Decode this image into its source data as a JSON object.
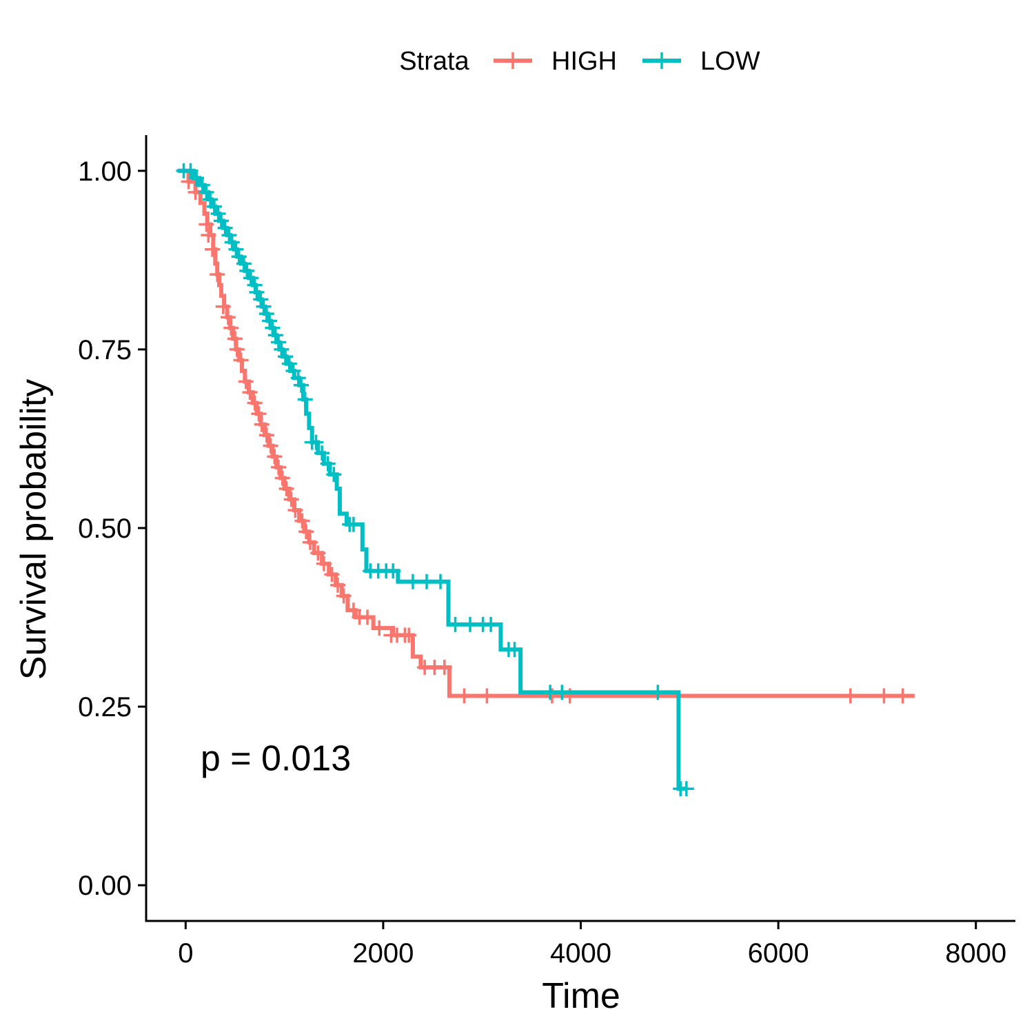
{
  "chart_data": {
    "type": "line",
    "subtype": "kaplan-meier step",
    "xlabel": "Time",
    "ylabel": "Survival probability",
    "xlim": [
      -400,
      8400
    ],
    "ylim": [
      -0.05,
      1.05
    ],
    "xticks": [
      0,
      2000,
      4000,
      6000,
      8000
    ],
    "xtick_labels": [
      "0",
      "2000",
      "4000",
      "6000",
      "8000"
    ],
    "yticks": [
      0,
      0.25,
      0.5,
      0.75,
      1.0
    ],
    "ytick_labels": [
      "0.00",
      "0.25",
      "0.50",
      "0.75",
      "1.00"
    ],
    "legend": {
      "title": "Strata",
      "position": "top"
    },
    "annotation": {
      "text": "p = 0.013",
      "x": 150,
      "y": 0.18
    },
    "grid": false,
    "series": [
      {
        "name": "HIGH",
        "color": "#F8766D",
        "steps": [
          [
            -80,
            1.0
          ],
          [
            30,
            0.985
          ],
          [
            100,
            0.97
          ],
          [
            150,
            0.955
          ],
          [
            190,
            0.94
          ],
          [
            220,
            0.925
          ],
          [
            250,
            0.91
          ],
          [
            280,
            0.89
          ],
          [
            300,
            0.87
          ],
          [
            320,
            0.855
          ],
          [
            340,
            0.84
          ],
          [
            360,
            0.825
          ],
          [
            390,
            0.81
          ],
          [
            420,
            0.795
          ],
          [
            450,
            0.78
          ],
          [
            480,
            0.765
          ],
          [
            510,
            0.75
          ],
          [
            540,
            0.735
          ],
          [
            570,
            0.72
          ],
          [
            600,
            0.705
          ],
          [
            640,
            0.69
          ],
          [
            680,
            0.675
          ],
          [
            720,
            0.66
          ],
          [
            760,
            0.645
          ],
          [
            800,
            0.63
          ],
          [
            840,
            0.615
          ],
          [
            880,
            0.6
          ],
          [
            920,
            0.585
          ],
          [
            960,
            0.57
          ],
          [
            1000,
            0.555
          ],
          [
            1050,
            0.54
          ],
          [
            1100,
            0.525
          ],
          [
            1150,
            0.51
          ],
          [
            1200,
            0.495
          ],
          [
            1250,
            0.48
          ],
          [
            1300,
            0.465
          ],
          [
            1380,
            0.45
          ],
          [
            1450,
            0.435
          ],
          [
            1520,
            0.42
          ],
          [
            1580,
            0.405
          ],
          [
            1640,
            0.385
          ],
          [
            1720,
            0.375
          ],
          [
            1900,
            0.36
          ],
          [
            2100,
            0.35
          ],
          [
            2300,
            0.32
          ],
          [
            2380,
            0.305
          ],
          [
            2670,
            0.265
          ],
          [
            7380,
            0.265
          ]
        ],
        "censor": [
          [
            30,
            0.985
          ],
          [
            100,
            0.97
          ],
          [
            210,
            0.925
          ],
          [
            230,
            0.91
          ],
          [
            270,
            0.89
          ],
          [
            320,
            0.855
          ],
          [
            380,
            0.81
          ],
          [
            430,
            0.795
          ],
          [
            460,
            0.78
          ],
          [
            500,
            0.765
          ],
          [
            520,
            0.75
          ],
          [
            560,
            0.735
          ],
          [
            610,
            0.705
          ],
          [
            650,
            0.69
          ],
          [
            700,
            0.675
          ],
          [
            740,
            0.66
          ],
          [
            770,
            0.645
          ],
          [
            820,
            0.63
          ],
          [
            860,
            0.615
          ],
          [
            900,
            0.6
          ],
          [
            940,
            0.585
          ],
          [
            980,
            0.57
          ],
          [
            1020,
            0.555
          ],
          [
            1070,
            0.54
          ],
          [
            1110,
            0.525
          ],
          [
            1180,
            0.51
          ],
          [
            1220,
            0.495
          ],
          [
            1260,
            0.48
          ],
          [
            1340,
            0.465
          ],
          [
            1400,
            0.45
          ],
          [
            1480,
            0.435
          ],
          [
            1540,
            0.42
          ],
          [
            1600,
            0.405
          ],
          [
            1700,
            0.385
          ],
          [
            1760,
            0.375
          ],
          [
            1840,
            0.375
          ],
          [
            1960,
            0.36
          ],
          [
            2080,
            0.35
          ],
          [
            2140,
            0.35
          ],
          [
            2220,
            0.35
          ],
          [
            2260,
            0.35
          ],
          [
            2420,
            0.305
          ],
          [
            2520,
            0.305
          ],
          [
            2620,
            0.305
          ],
          [
            2820,
            0.265
          ],
          [
            3050,
            0.265
          ],
          [
            3710,
            0.265
          ],
          [
            3890,
            0.265
          ],
          [
            6730,
            0.265
          ],
          [
            7070,
            0.265
          ],
          [
            7260,
            0.265
          ]
        ]
      },
      {
        "name": "LOW",
        "color": "#00BFC4",
        "steps": [
          [
            -80,
            1.0
          ],
          [
            80,
            0.99
          ],
          [
            140,
            0.98
          ],
          [
            190,
            0.97
          ],
          [
            230,
            0.96
          ],
          [
            260,
            0.95
          ],
          [
            300,
            0.94
          ],
          [
            340,
            0.93
          ],
          [
            380,
            0.92
          ],
          [
            420,
            0.91
          ],
          [
            450,
            0.9
          ],
          [
            490,
            0.89
          ],
          [
            520,
            0.88
          ],
          [
            560,
            0.87
          ],
          [
            600,
            0.86
          ],
          [
            640,
            0.85
          ],
          [
            680,
            0.84
          ],
          [
            710,
            0.83
          ],
          [
            740,
            0.82
          ],
          [
            770,
            0.81
          ],
          [
            800,
            0.8
          ],
          [
            830,
            0.79
          ],
          [
            860,
            0.78
          ],
          [
            890,
            0.77
          ],
          [
            920,
            0.76
          ],
          [
            950,
            0.75
          ],
          [
            980,
            0.74
          ],
          [
            1020,
            0.73
          ],
          [
            1060,
            0.72
          ],
          [
            1100,
            0.71
          ],
          [
            1150,
            0.7
          ],
          [
            1190,
            0.68
          ],
          [
            1220,
            0.66
          ],
          [
            1250,
            0.64
          ],
          [
            1280,
            0.62
          ],
          [
            1340,
            0.605
          ],
          [
            1400,
            0.59
          ],
          [
            1460,
            0.575
          ],
          [
            1530,
            0.555
          ],
          [
            1560,
            0.52
          ],
          [
            1630,
            0.505
          ],
          [
            1790,
            0.47
          ],
          [
            1830,
            0.44
          ],
          [
            2150,
            0.44
          ],
          [
            2150,
            0.425
          ],
          [
            2640,
            0.425
          ],
          [
            2660,
            0.365
          ],
          [
            3140,
            0.365
          ],
          [
            3190,
            0.33
          ],
          [
            3380,
            0.33
          ],
          [
            3390,
            0.27
          ],
          [
            4990,
            0.27
          ],
          [
            4990,
            0.135
          ],
          [
            5070,
            0.135
          ]
        ],
        "censor": [
          [
            -20,
            1.0
          ],
          [
            50,
            1.0
          ],
          [
            110,
            0.99
          ],
          [
            170,
            0.98
          ],
          [
            210,
            0.97
          ],
          [
            250,
            0.96
          ],
          [
            290,
            0.95
          ],
          [
            330,
            0.94
          ],
          [
            360,
            0.93
          ],
          [
            400,
            0.92
          ],
          [
            440,
            0.91
          ],
          [
            470,
            0.9
          ],
          [
            510,
            0.89
          ],
          [
            540,
            0.88
          ],
          [
            590,
            0.87
          ],
          [
            620,
            0.86
          ],
          [
            660,
            0.85
          ],
          [
            700,
            0.84
          ],
          [
            720,
            0.83
          ],
          [
            760,
            0.82
          ],
          [
            790,
            0.81
          ],
          [
            820,
            0.8
          ],
          [
            850,
            0.79
          ],
          [
            880,
            0.78
          ],
          [
            910,
            0.77
          ],
          [
            940,
            0.76
          ],
          [
            970,
            0.75
          ],
          [
            1010,
            0.74
          ],
          [
            1050,
            0.73
          ],
          [
            1090,
            0.72
          ],
          [
            1140,
            0.71
          ],
          [
            1170,
            0.7
          ],
          [
            1210,
            0.68
          ],
          [
            1280,
            0.62
          ],
          [
            1320,
            0.62
          ],
          [
            1380,
            0.605
          ],
          [
            1440,
            0.59
          ],
          [
            1500,
            0.575
          ],
          [
            1660,
            0.505
          ],
          [
            1700,
            0.505
          ],
          [
            1870,
            0.44
          ],
          [
            1950,
            0.44
          ],
          [
            2030,
            0.44
          ],
          [
            2100,
            0.44
          ],
          [
            2300,
            0.425
          ],
          [
            2440,
            0.425
          ],
          [
            2580,
            0.425
          ],
          [
            2730,
            0.365
          ],
          [
            2880,
            0.365
          ],
          [
            3010,
            0.365
          ],
          [
            3090,
            0.365
          ],
          [
            3270,
            0.33
          ],
          [
            3330,
            0.33
          ],
          [
            3690,
            0.27
          ],
          [
            3810,
            0.27
          ],
          [
            4780,
            0.27
          ],
          [
            5010,
            0.135
          ],
          [
            5070,
            0.135
          ]
        ]
      }
    ]
  }
}
